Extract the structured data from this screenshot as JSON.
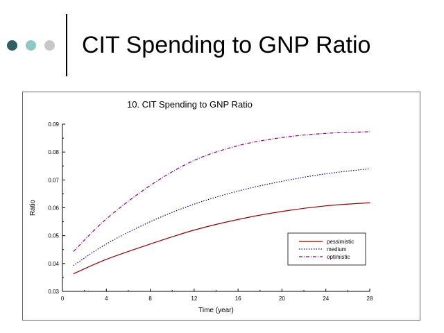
{
  "slide": {
    "title": "CIT Spending to GNP Ratio",
    "bullet_colors": [
      "#2f5f5f",
      "#8cc8c8",
      "#c8c8c8"
    ]
  },
  "chart_data": {
    "type": "line",
    "title": "10.   CIT Spending to GNP Ratio",
    "xlabel": "Time (year)",
    "ylabel": "Ratio",
    "xlim": [
      0,
      28
    ],
    "ylim": [
      0.03,
      0.09
    ],
    "xticks": [
      0,
      4,
      8,
      12,
      16,
      20,
      24,
      28
    ],
    "yticks": [
      0.03,
      0.04,
      0.05,
      0.06,
      0.07,
      0.08,
      0.09
    ],
    "xtick_labels": [
      "0",
      "4",
      "8",
      "12",
      "16",
      "20",
      "24",
      "28"
    ],
    "ytick_labels": [
      "0.03",
      "0.04",
      "0.05",
      "0.06",
      "0.07",
      "0.08",
      "0.09"
    ],
    "grid": false,
    "legend_position": "bottom-right",
    "x": [
      1,
      4,
      8,
      12,
      16,
      20,
      24,
      28
    ],
    "series": [
      {
        "name": "pessimistic",
        "color": "#8b0000",
        "dash": "solid",
        "values": [
          0.0363,
          0.0415,
          0.047,
          0.052,
          0.0558,
          0.0587,
          0.0607,
          0.0618
        ]
      },
      {
        "name": "medium",
        "color": "#000080",
        "dash": "dotted",
        "values": [
          0.0393,
          0.047,
          0.055,
          0.0613,
          0.066,
          0.0695,
          0.0722,
          0.074
        ]
      },
      {
        "name": "optimistic",
        "color": "#800080",
        "dash": "dashdot",
        "values": [
          0.0443,
          0.056,
          0.068,
          0.077,
          0.0823,
          0.0852,
          0.0867,
          0.0873
        ]
      }
    ]
  }
}
